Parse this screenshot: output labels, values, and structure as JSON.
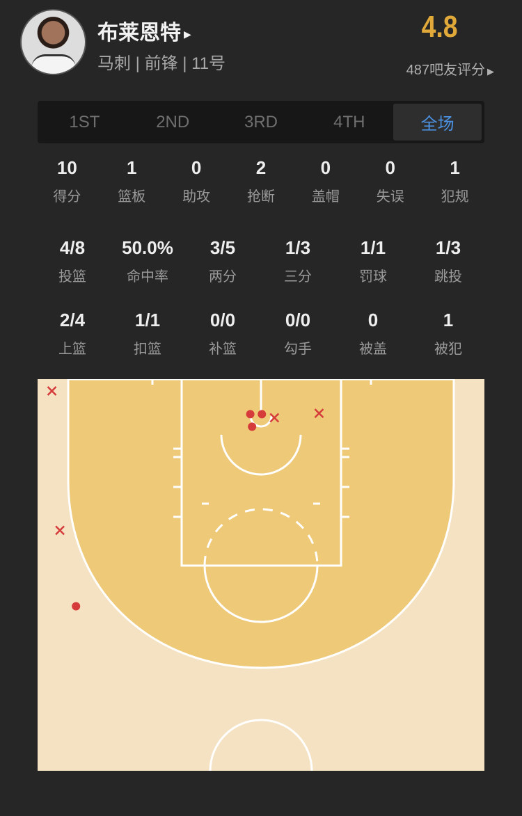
{
  "player": {
    "name": "布莱恩特",
    "info": "马刺 | 前锋 | 11号",
    "score": "4.8",
    "rating": "487吧友评分"
  },
  "tabs": [
    {
      "label": "1ST"
    },
    {
      "label": "2ND"
    },
    {
      "label": "3RD"
    },
    {
      "label": "4TH"
    },
    {
      "label": "全场",
      "active": true
    }
  ],
  "stats_row1": [
    {
      "v": "10",
      "l": "得分"
    },
    {
      "v": "1",
      "l": "篮板"
    },
    {
      "v": "0",
      "l": "助攻"
    },
    {
      "v": "2",
      "l": "抢断"
    },
    {
      "v": "0",
      "l": "盖帽"
    },
    {
      "v": "0",
      "l": "失误"
    },
    {
      "v": "1",
      "l": "犯规"
    }
  ],
  "stats_row2": [
    {
      "v": "4/8",
      "l": "投篮"
    },
    {
      "v": "50.0%",
      "l": "命中率"
    },
    {
      "v": "3/5",
      "l": "两分"
    },
    {
      "v": "1/3",
      "l": "三分"
    },
    {
      "v": "1/1",
      "l": "罚球"
    },
    {
      "v": "1/3",
      "l": "跳投"
    }
  ],
  "stats_row3": [
    {
      "v": "2/4",
      "l": "上篮"
    },
    {
      "v": "1/1",
      "l": "扣篮"
    },
    {
      "v": "0/0",
      "l": "补篮"
    },
    {
      "v": "0/0",
      "l": "勾手"
    },
    {
      "v": "0",
      "l": "被盖"
    },
    {
      "v": "1",
      "l": "被犯"
    }
  ],
  "colors": {
    "accent": "#4b91e0",
    "score": "#e0a93a",
    "made": "#d63b3b",
    "court_inner": "#eec978",
    "court_outer": "#f5e2c2"
  },
  "shot_chart": {
    "units": "feet from basket",
    "shots": [
      {
        "x": -23.4,
        "y": -1.4,
        "made": false
      },
      {
        "x": -1.2,
        "y": 1.2,
        "made": true
      },
      {
        "x": 0.1,
        "y": 1.2,
        "made": true
      },
      {
        "x": -1.0,
        "y": 2.6,
        "made": true
      },
      {
        "x": 1.5,
        "y": 1.6,
        "made": false
      },
      {
        "x": 6.5,
        "y": 1.1,
        "made": false
      },
      {
        "x": -22.5,
        "y": 14.2,
        "made": false
      },
      {
        "x": -20.7,
        "y": 22.7,
        "made": true
      }
    ]
  }
}
